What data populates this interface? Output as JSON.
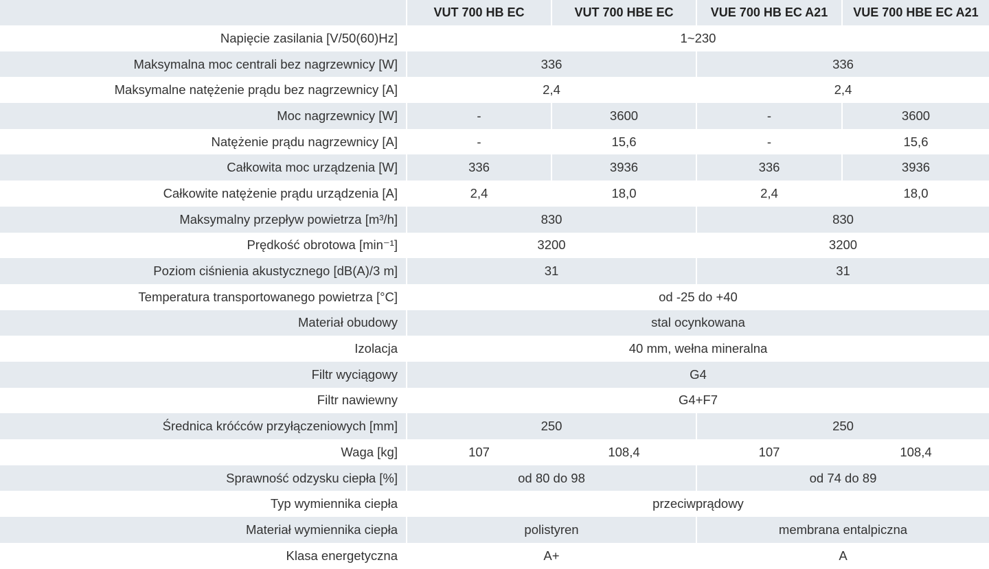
{
  "table": {
    "columns": [
      "VUT 700 HB EC",
      "VUT 700 HBE EC",
      "VUE 700 HB EC A21",
      "VUE 700 HBE EC A21"
    ],
    "rows": [
      {
        "label": "Napięcie zasilania [V/50(60)Hz]",
        "cells": [
          "1~230"
        ]
      },
      {
        "label": "Maksymalna moc centrali bez nagrzewnicy [W]",
        "cells": [
          "336",
          "336"
        ]
      },
      {
        "label": "Maksymalne natężenie prądu bez nagrzewnicy [A]",
        "cells": [
          "2,4",
          "2,4"
        ]
      },
      {
        "label": "Moc nagrzewnicy [W]",
        "cells": [
          "-",
          "3600",
          "-",
          "3600"
        ]
      },
      {
        "label": "Natężenie prądu nagrzewnicy [A]",
        "cells": [
          "-",
          "15,6",
          "-",
          "15,6"
        ]
      },
      {
        "label": "Całkowita moc urządzenia [W]",
        "cells": [
          "336",
          "3936",
          "336",
          "3936"
        ]
      },
      {
        "label": "Całkowite natężenie prądu urządzenia [A]",
        "cells": [
          "2,4",
          "18,0",
          "2,4",
          "18,0"
        ]
      },
      {
        "label": "Maksymalny przepływ powietrza [m³/h]",
        "cells": [
          "830",
          "830"
        ]
      },
      {
        "label": "Prędkość obrotowa [min⁻¹]",
        "cells": [
          "3200",
          "3200"
        ]
      },
      {
        "label": "Poziom ciśnienia akustycznego [dB(A)/3 m]",
        "cells": [
          "31",
          "31"
        ]
      },
      {
        "label": "Temperatura transportowanego powietrza [°C]",
        "cells": [
          "od -25 do +40"
        ]
      },
      {
        "label": "Materiał obudowy",
        "cells": [
          "stal ocynkowana"
        ]
      },
      {
        "label": "Izolacja",
        "cells": [
          "40 mm, wełna mineralna"
        ]
      },
      {
        "label": "Filtr wyciągowy",
        "cells": [
          "G4"
        ]
      },
      {
        "label": "Filtr nawiewny",
        "cells": [
          "G4+F7"
        ]
      },
      {
        "label": "Średnica króćców przyłączeniowych [mm]",
        "cells": [
          "250",
          "250"
        ]
      },
      {
        "label": "Waga [kg]",
        "cells": [
          "107",
          "108,4",
          "107",
          "108,4"
        ]
      },
      {
        "label": "Sprawność odzysku ciepła [%]",
        "cells": [
          "od 80 do 98",
          "od 74 do 89"
        ]
      },
      {
        "label": "Typ wymiennika ciepła",
        "cells": [
          "przeciwprądowy"
        ]
      },
      {
        "label": "Materiał wymiennika ciepła",
        "cells": [
          "polistyren",
          "membrana entalpiczna"
        ]
      },
      {
        "label": "Klasa energetyczna",
        "cells": [
          "A+",
          "A"
        ]
      }
    ]
  }
}
